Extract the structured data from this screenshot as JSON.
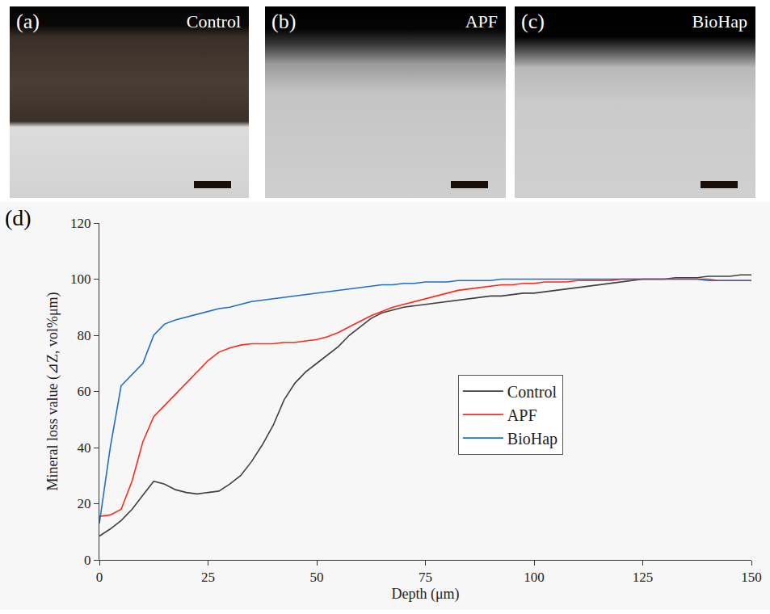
{
  "panels": [
    {
      "letter": "(a)",
      "label": "Control"
    },
    {
      "letter": "(b)",
      "label": "APF"
    },
    {
      "letter": "(c)",
      "label": "BioHap"
    }
  ],
  "chart_panel": "(d)",
  "chart_data": {
    "type": "line",
    "x_label": "Depth (μm)",
    "y_label": "Mineral loss value (⊿Z, vol%μm)",
    "xlim": [
      0,
      150
    ],
    "xticks": [
      0,
      25,
      50,
      75,
      100,
      125,
      150
    ],
    "ylim": [
      0,
      120
    ],
    "yticks": [
      0,
      20,
      40,
      60,
      80,
      100,
      120
    ],
    "grid": false,
    "legend": "right",
    "x": [
      0,
      2.5,
      5,
      7.5,
      10,
      12.5,
      15,
      17.5,
      20,
      22.5,
      25,
      27.5,
      30,
      32.5,
      35,
      37.5,
      40,
      42.5,
      45,
      47.5,
      50,
      52.5,
      55,
      57.5,
      60,
      62.5,
      65,
      67.5,
      70,
      72.5,
      75,
      77.5,
      80,
      82.5,
      85,
      87.5,
      90,
      92.5,
      95,
      97.5,
      100,
      102.5,
      105,
      107.5,
      110,
      112.5,
      115,
      117.5,
      120,
      122.5,
      125,
      127.5,
      130,
      132.5,
      135,
      137.5,
      140,
      142.5,
      145,
      147.5,
      150
    ],
    "series": [
      {
        "name": "Control",
        "color": "#404040",
        "values": [
          8.5,
          11,
          14,
          18,
          23,
          28,
          27,
          25,
          24,
          23.5,
          24,
          24.5,
          27,
          30,
          35,
          41,
          48,
          57,
          63,
          67,
          70,
          73,
          76,
          80,
          83,
          86,
          88,
          89,
          90,
          90.5,
          91,
          91.5,
          92,
          92.5,
          93,
          93.5,
          94,
          94,
          94.5,
          95,
          95,
          95.5,
          96,
          96.5,
          97,
          97.5,
          98,
          98.5,
          99,
          99.5,
          100,
          100,
          100,
          100.5,
          100.5,
          100.5,
          101,
          101,
          101,
          101.5,
          101.5
        ]
      },
      {
        "name": "APF",
        "color": "#ff2a1a",
        "values": [
          15.5,
          16,
          18,
          28,
          42,
          51,
          55,
          59,
          63,
          67,
          71,
          74,
          75.5,
          76.5,
          77,
          77,
          77,
          77.5,
          77.5,
          78,
          78.5,
          79.5,
          81,
          83,
          85,
          87,
          88.5,
          90,
          91,
          92,
          93,
          94,
          95,
          96,
          96.5,
          97,
          97.5,
          98,
          98,
          98.5,
          98.5,
          99,
          99,
          99,
          99.5,
          99.5,
          99.5,
          99.5,
          100,
          100,
          100,
          100,
          100,
          100,
          100,
          100,
          100,
          99.5,
          99.5,
          99.5,
          99.5
        ]
      },
      {
        "name": "BioHap",
        "color": "#1f6fc5",
        "values": [
          13,
          40,
          62,
          66,
          70,
          80,
          84,
          85.5,
          86.5,
          87.5,
          88.5,
          89.5,
          90,
          91,
          92,
          92.5,
          93,
          93.5,
          94,
          94.5,
          95,
          95.5,
          96,
          96.5,
          97,
          97.5,
          98,
          98,
          98.5,
          98.5,
          99,
          99,
          99,
          99.5,
          99.5,
          99.5,
          99.5,
          100,
          100,
          100,
          100,
          100,
          100,
          100,
          100,
          100,
          100,
          100,
          100,
          100,
          100,
          100,
          100,
          100,
          100,
          100,
          99.5,
          99.5,
          99.5,
          99.5,
          99.5
        ]
      }
    ]
  }
}
